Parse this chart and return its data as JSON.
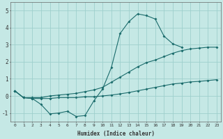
{
  "xlabel": "Humidex (Indice chaleur)",
  "ylabel": "",
  "bg_color": "#c5e8e5",
  "grid_color": "#9ecfcc",
  "line_color": "#1a6b6b",
  "xlim": [
    -0.5,
    23.5
  ],
  "ylim": [
    -1.5,
    5.5
  ],
  "yticks": [
    -1,
    0,
    1,
    2,
    3,
    4,
    5
  ],
  "xticks": [
    0,
    1,
    2,
    3,
    4,
    5,
    6,
    7,
    8,
    9,
    10,
    11,
    12,
    13,
    14,
    15,
    16,
    17,
    18,
    19,
    20,
    21,
    22,
    23
  ],
  "line1_x": [
    0,
    1,
    2,
    3,
    4,
    5,
    6,
    7,
    8,
    9,
    10,
    11,
    12,
    13,
    14,
    15,
    16,
    17,
    18,
    19
  ],
  "line1_y": [
    0.3,
    -0.1,
    -0.15,
    -0.5,
    -1.05,
    -1.0,
    -0.9,
    -1.2,
    -1.15,
    -0.3,
    0.4,
    1.65,
    3.65,
    4.35,
    4.8,
    4.7,
    4.5,
    3.5,
    3.05,
    2.85
  ],
  "line2_x": [
    0,
    1,
    2,
    3,
    4,
    5,
    6,
    7,
    8,
    9,
    10,
    11,
    12,
    13,
    14,
    15,
    16,
    17,
    18,
    19,
    20,
    21,
    22,
    23
  ],
  "line2_y": [
    0.3,
    -0.1,
    -0.15,
    -0.15,
    -0.15,
    -0.1,
    -0.1,
    -0.1,
    -0.05,
    -0.05,
    0.0,
    0.05,
    0.12,
    0.2,
    0.3,
    0.4,
    0.5,
    0.6,
    0.7,
    0.75,
    0.82,
    0.85,
    0.9,
    0.95
  ],
  "line3_x": [
    0,
    1,
    2,
    3,
    4,
    5,
    6,
    7,
    8,
    9,
    10,
    11,
    12,
    13,
    14,
    15,
    16,
    17,
    18,
    19,
    20,
    21,
    22,
    23
  ],
  "line3_y": [
    0.3,
    -0.1,
    -0.1,
    -0.1,
    0.0,
    0.05,
    0.1,
    0.15,
    0.25,
    0.35,
    0.5,
    0.8,
    1.1,
    1.4,
    1.7,
    1.95,
    2.1,
    2.3,
    2.5,
    2.65,
    2.75,
    2.8,
    2.85,
    2.85
  ]
}
